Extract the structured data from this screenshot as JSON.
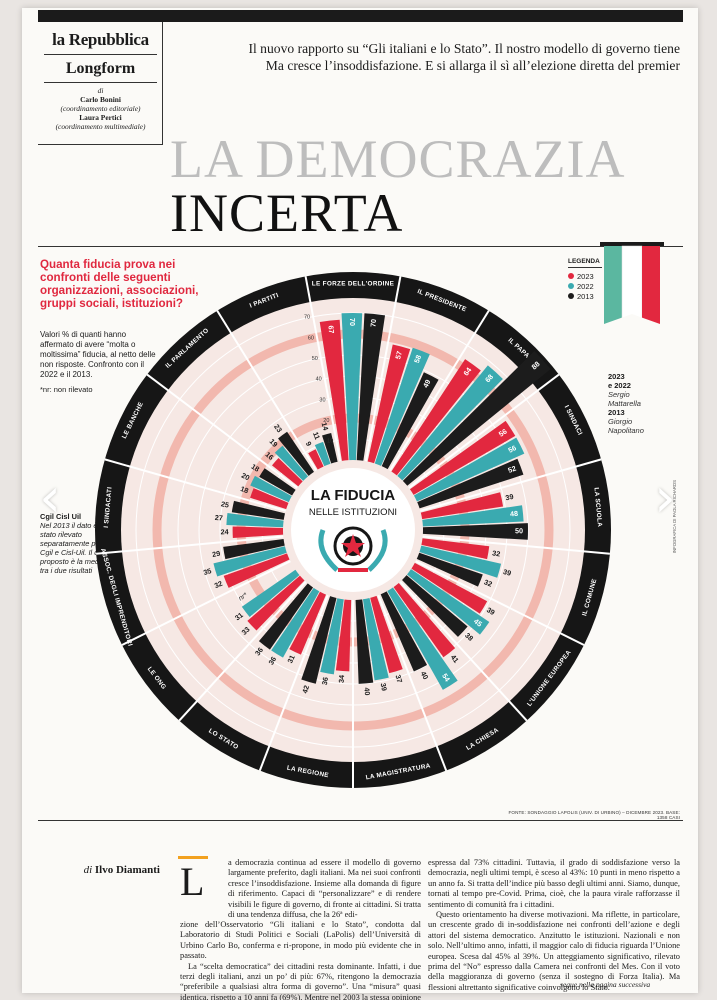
{
  "masthead": {
    "name": "la Repubblica",
    "section": "Longform",
    "by": "di",
    "author1": "Carlo Bonini",
    "role1": "(coordinamento editoriale)",
    "author2": "Laura Pertici",
    "role2": "(coordinamento multimediale)"
  },
  "intro": {
    "line1": "Il nuovo rapporto su “Gli italiani e lo Stato”. Il nostro modello di governo tiene",
    "line2": "Ma cresce l’insoddisfazione. E si allarga il sì all’elezione diretta del premier"
  },
  "headline": {
    "line1": "LA DEMOCRAZIA",
    "line2": "INCERTA"
  },
  "question": "Quanta fiducia prova nei confronti delle seguenti organizzazioni, associazioni, gruppi sociali, istituzioni?",
  "values_note": "Valori % di quanti hanno affermato di avere “molta o moltissima” fiducia, al netto delle non risposte. Confronto con il 2022 e il 2013.",
  "nr_note": "*nr: non rilevato",
  "cgil_note": {
    "title": "Cgil Cisl Uil",
    "text": "Nel 2013 il dato è stato rilevato separatamente per Cgil e Cisl-Uil. Il dato proposto è la media tra i due risultati"
  },
  "legend": {
    "title": "LEGENDA",
    "items": [
      "2023",
      "2022",
      "2013"
    ]
  },
  "president_note": {
    "y1": "2023",
    "y1b": "e 2022",
    "n1a": "Sergio",
    "n1b": "Mattarella",
    "y2": "2013",
    "n2a": "Giorgio",
    "n2b": "Napolitano"
  },
  "center": {
    "title": "LA FIDUCIA",
    "subtitle": "NELLE ISTITUZIONI"
  },
  "source": "FONTE: SONDAGGIO LAPOLIS (UNIV. DI URBINO) – DICEMBRE 2023. BASE: 1358 CASI",
  "credit": "INFOGRAFICA DI PAOLA RICHARDS",
  "nav": {
    "prev": "‹",
    "next": "›"
  },
  "byline": {
    "prefix": "di",
    "author": "Ilvo Diamanti"
  },
  "article": {
    "dropcap": "L",
    "p1a": "a democrazia continua ad essere il modello di governo largamente preferito, dagli italiani. Ma nei suoi confronti cresce l’insoddisfazione. Insieme alla domanda di figure di riferimento. Capaci di “personalizzare” e di rendere visibili le figure di governo, di fronte ai cittadini. Si tratta di una tendenza diffusa, che la 26ª edi-",
    "p1b": "zione dell’Osservatorio “Gli italiani e lo Stato”, condotta dal Laboratorio di Studi Politici e Sociali (LaPolis) dell’Università di Urbino Carlo Bo, conferma e ri-propone, in modo più evidente che in passato.",
    "p2": "La “scelta democratica” dei cittadini resta dominante. Infatti, i due terzi degli italiani, anzi un po’ di più: 67%, ritengono la democrazia “preferibile a qualsiasi altra forma di governo”. Una “misura” quasi identica, rispetto a 10 anni fa (69%). Mentre nel 2003 la stessa opinione era",
    "p3": "espressa dal 73% cittadini. Tuttavia, il grado di soddisfazione verso la democrazia, negli ultimi tempi, è sceso al 43%: 10 punti in meno rispetto a un anno fa. Si tratta dell’indice più basso degli ultimi anni. Siamo, dunque, tornati al tempo pre-Covid. Prima, cioè, che la paura virale rafforzasse il sentimento di comunità fra i cittadini.",
    "p4": "Questo orientamento ha diverse motivazioni. Ma riflette, in particolare, un crescente grado di in-soddisfazione nei confronti dell’azione e degli attori del sistema democratico. Anzitutto le istituzioni. Nazionali e non solo. Nell’ultimo anno, infatti, il maggior calo di fiducia riguarda l’Unione europea. Scesa dal 45% al 39%. Un atteggiamento significativo, rilevato prima del “No” espresso dalla Camera nei confronti del Mes. Con il voto della maggioranza di governo (senza il sostegno di Forza Italia). Ma flessioni altrettanto significative coinvolgono lo Stato.",
    "continue": "segue nella pagina successiva"
  },
  "colors": {
    "y2023": "#e2283f",
    "y2022": "#3aaab0",
    "y2013": "#1c1c1c",
    "ring": "#f2b8ae",
    "bg": "#f6e8e4",
    "dark": "#161616",
    "red": "#e2283f",
    "teal": "#3aaab0"
  },
  "chart_data": {
    "type": "radial-bar",
    "title": "LA FIDUCIA",
    "subtitle": "NELLE ISTITUZIONI",
    "series_names": [
      "2023",
      "2022",
      "2013"
    ],
    "axis_ticks": [
      "10",
      "20",
      "30",
      "40",
      "50",
      "60",
      "70"
    ],
    "categories": [
      {
        "name": "LE FORZE DELL'ORDINE",
        "v": [
          67,
          70,
          70
        ]
      },
      {
        "name": "IL PRESIDENTE",
        "v": [
          57,
          58,
          49
        ]
      },
      {
        "name": "IL PAPA",
        "v": [
          64,
          68,
          88
        ]
      },
      {
        "name": "I SINDACI",
        "v": [
          56,
          56,
          52
        ]
      },
      {
        "name": "LA SCUOLA",
        "v": [
          39,
          48,
          50
        ]
      },
      {
        "name": "IL COMUNE",
        "v": [
          32,
          39,
          32
        ]
      },
      {
        "name": "L'UNIONE EUROPEA",
        "v": [
          39,
          45,
          38
        ]
      },
      {
        "name": "LA CHIESA",
        "v": [
          41,
          54,
          40
        ]
      },
      {
        "name": "LA MAGISTRATURA",
        "v": [
          37,
          39,
          40
        ]
      },
      {
        "name": "LA REGIONE",
        "v": [
          34,
          36,
          42
        ]
      },
      {
        "name": "LO STATO",
        "v": [
          31,
          36,
          36
        ]
      },
      {
        "name": "LE ONG",
        "v": [
          33,
          31,
          null
        ]
      },
      {
        "name": "ASSOC. DEGLI IMPRENDITORI",
        "v": [
          32,
          35,
          29
        ]
      },
      {
        "name": "I SINDACATI",
        "v": [
          24,
          27,
          25
        ]
      },
      {
        "name": "LE BANCHE",
        "v": [
          18,
          20,
          18
        ]
      },
      {
        "name": "IL PARLAMENTO",
        "v": [
          16,
          19,
          23
        ]
      },
      {
        "name": "I PARTITI",
        "v": [
          9,
          11,
          14
        ]
      }
    ]
  }
}
